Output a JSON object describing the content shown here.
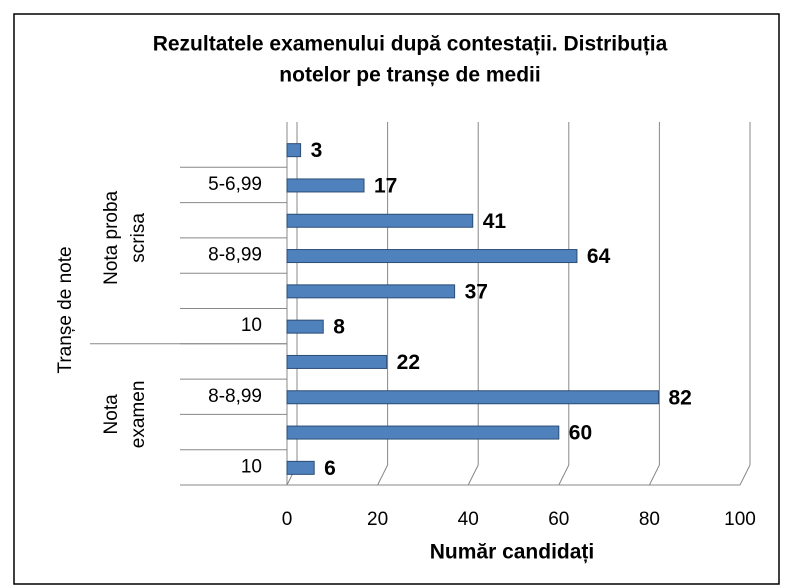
{
  "chart_data": {
    "type": "bar",
    "orientation": "horizontal",
    "title": [
      "Rezultatele examenului după contestații. Distribuția",
      "notelor pe tranșe de medii"
    ],
    "x_label": "Număr candidați",
    "y_label": "Tranșe de note",
    "color": "#4f81bd",
    "grid": true,
    "xlim": [
      0,
      100
    ],
    "xticks": [
      0,
      20,
      40,
      60,
      80,
      100
    ],
    "groups": [
      {
        "name": [
          "Nota proba",
          "scrisa"
        ],
        "categories": [
          null,
          "5-6,99",
          null,
          "8-8,99",
          null,
          "10"
        ],
        "values": [
          3,
          17,
          41,
          64,
          37,
          8
        ]
      },
      {
        "name": [
          "Nota",
          "examen"
        ],
        "categories": [
          null,
          "8-8,99",
          null,
          "10"
        ],
        "values": [
          22,
          82,
          60,
          6
        ]
      }
    ]
  }
}
